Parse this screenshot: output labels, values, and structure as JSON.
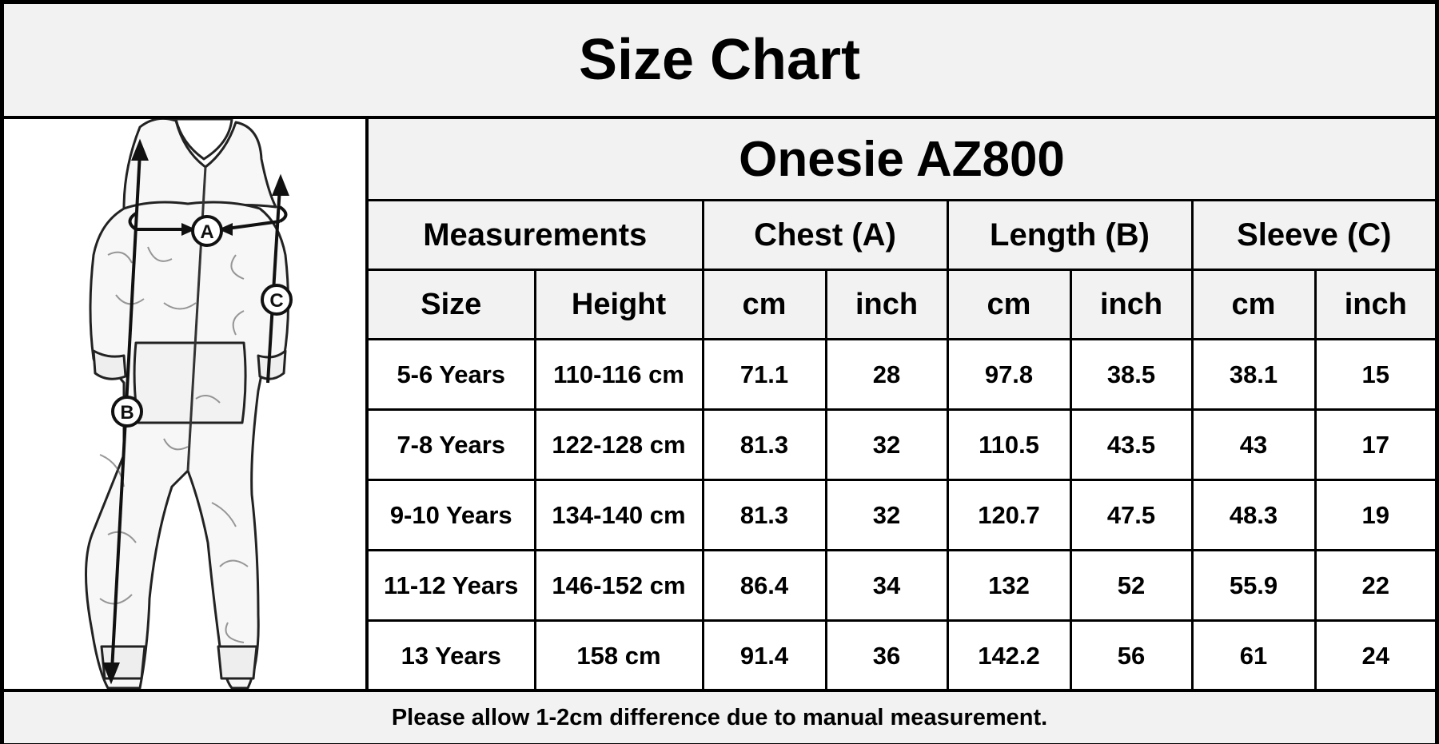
{
  "title": "Size Chart",
  "product_name": "Onesie AZ800",
  "figure": {
    "icon": "onesie-measurement-illustration",
    "markers": {
      "chest": "A",
      "length": "B",
      "sleeve": "C"
    }
  },
  "table": {
    "group_headers": {
      "measurements": "Measurements",
      "chest": "Chest (A)",
      "length": "Length (B)",
      "sleeve": "Sleeve (C)"
    },
    "unit_headers": [
      "Size",
      "Height",
      "cm",
      "inch",
      "cm",
      "inch",
      "cm",
      "inch"
    ],
    "rows": [
      [
        "5-6 Years",
        "110-116 cm",
        "71.1",
        "28",
        "97.8",
        "38.5",
        "38.1",
        "15"
      ],
      [
        "7-8 Years",
        "122-128 cm",
        "81.3",
        "32",
        "110.5",
        "43.5",
        "43",
        "17"
      ],
      [
        "9-10 Years",
        "134-140 cm",
        "81.3",
        "32",
        "120.7",
        "47.5",
        "48.3",
        "19"
      ],
      [
        "11-12 Years",
        "146-152 cm",
        "86.4",
        "34",
        "132",
        "52",
        "55.9",
        "22"
      ],
      [
        "13 Years",
        "158 cm",
        "91.4",
        "36",
        "142.2",
        "56",
        "61",
        "24"
      ]
    ]
  },
  "footer_note": "Please allow 1-2cm difference due to manual measurement."
}
